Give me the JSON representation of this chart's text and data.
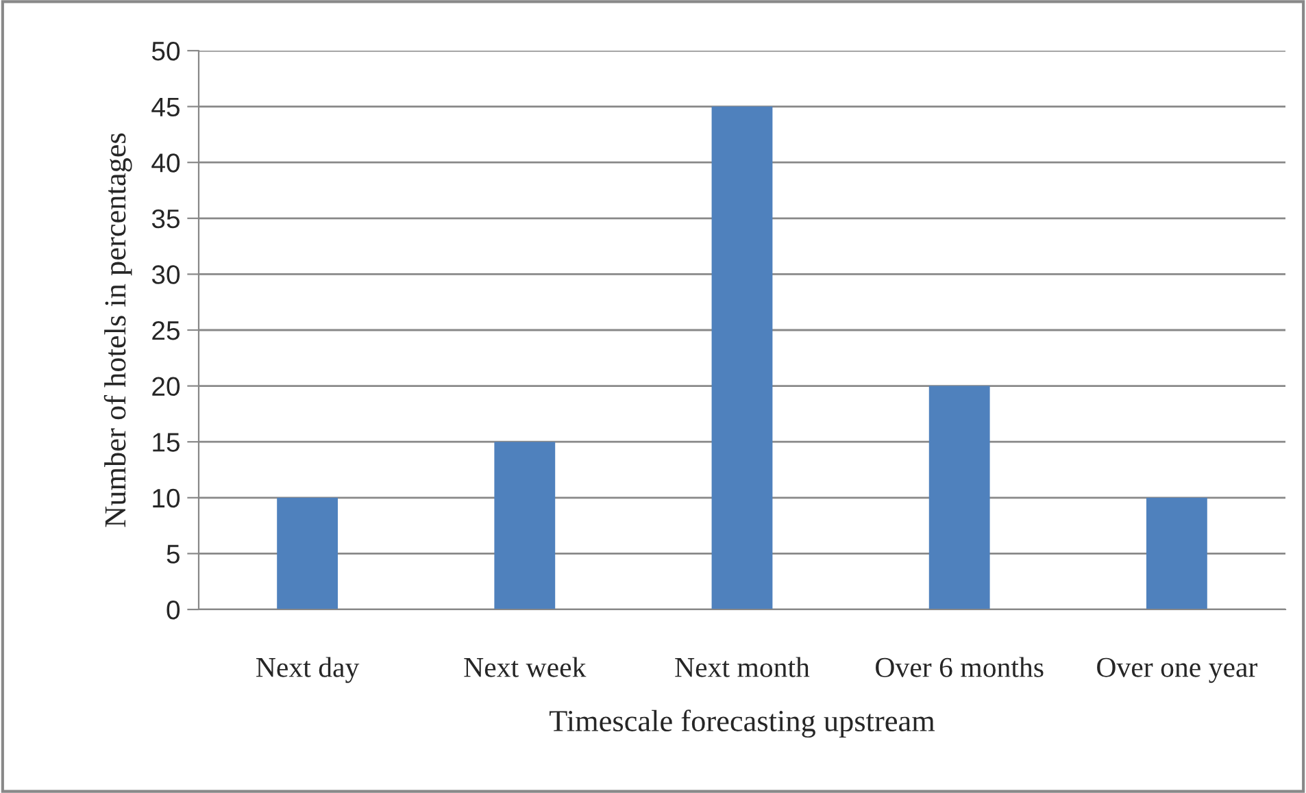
{
  "chart_data": {
    "type": "bar",
    "xlabel": "Timescale forecasting upstream",
    "ylabel": "Number of hotels in percentages",
    "categories": [
      "Next day",
      "Next week",
      "Next month",
      "Over 6 months",
      "Over one year"
    ],
    "values": [
      10,
      15,
      45,
      20,
      10
    ],
    "color": "#4f81bd",
    "ylim": [
      0,
      50
    ],
    "yticks": [
      0,
      5,
      10,
      15,
      20,
      25,
      30,
      35,
      40,
      45,
      50
    ],
    "grid": "y",
    "legend": false
  }
}
